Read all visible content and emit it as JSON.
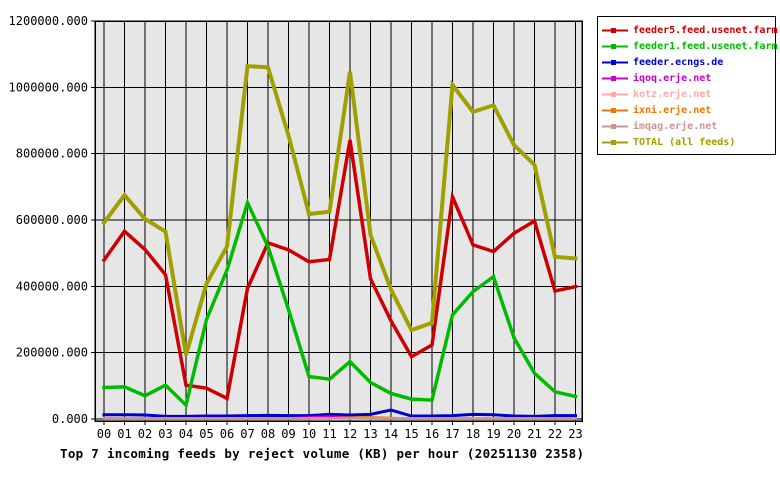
{
  "title": "Top 7 incoming feeds by reject volume (KB) per hour (20251130 2358)",
  "chart_data": {
    "type": "line",
    "title": "Top 7 incoming feeds by reject volume (KB) per hour (20251130 2358)",
    "xlabel": "",
    "ylabel": "",
    "x_tick_labels": [
      "00",
      "01",
      "02",
      "03",
      "04",
      "05",
      "06",
      "07",
      "08",
      "09",
      "10",
      "11",
      "12",
      "13",
      "14",
      "15",
      "16",
      "17",
      "18",
      "19",
      "20",
      "21",
      "22",
      "23"
    ],
    "ylim": [
      0,
      1200000
    ],
    "y_ticks": [
      {
        "label": "0.000",
        "value": 0
      },
      {
        "label": "200000.000",
        "value": 200000
      },
      {
        "label": "400000.000",
        "value": 400000
      },
      {
        "label": "600000.000",
        "value": 600000
      },
      {
        "label": "800000.000",
        "value": 800000
      },
      {
        "label": "1000000.000",
        "value": 1000000
      },
      {
        "label": "1200000.000",
        "value": 1200000
      }
    ],
    "grid": true,
    "legend_position": "top-right",
    "plot_background": "#e6e6e6",
    "grid_color": "#000000",
    "series": [
      {
        "name": "feeder5.feed.usenet.farm",
        "color": "#cc0000",
        "width": 3.5,
        "values": [
          479000,
          566000,
          511000,
          435000,
          102000,
          93000,
          62000,
          394000,
          531000,
          510000,
          474000,
          481000,
          841000,
          423000,
          296000,
          188000,
          223000,
          670000,
          525000,
          505000,
          560000,
          597000,
          386000,
          399000
        ]
      },
      {
        "name": "feeder1.feed.usenet.farm",
        "color": "#00bb00",
        "width": 3.5,
        "values": [
          95000,
          97000,
          70000,
          102000,
          42000,
          300000,
          449000,
          652000,
          520000,
          330000,
          128000,
          120000,
          173000,
          110000,
          77000,
          60000,
          57000,
          314000,
          384000,
          429000,
          245000,
          138000,
          82000,
          68000
        ]
      },
      {
        "name": "feeder.ecngs.de",
        "color": "#0000cc",
        "width": 3,
        "values": [
          13000,
          13000,
          12000,
          8000,
          8000,
          9000,
          9000,
          10000,
          11000,
          10000,
          10000,
          14000,
          12000,
          14000,
          27000,
          9000,
          9000,
          10000,
          14000,
          13000,
          9000,
          8000,
          10000,
          10000
        ]
      },
      {
        "name": "iqoq.erje.net",
        "color": "#cc00cc",
        "width": 2.5,
        "values": [
          1000,
          1000,
          1000,
          1000,
          1000,
          1000,
          1000,
          1000,
          1000,
          2000,
          5000,
          7000,
          4000,
          2000,
          1000,
          1000,
          1000,
          1000,
          1000,
          1000,
          1000,
          1000,
          1000,
          1000
        ]
      },
      {
        "name": "kotz.erje.net",
        "color": "#ffaaaa",
        "width": 2.5,
        "values": [
          1500,
          1500,
          1500,
          1500,
          1500,
          1500,
          1500,
          1500,
          1500,
          1500,
          1500,
          2000,
          3000,
          3000,
          2000,
          1500,
          1500,
          1500,
          1500,
          1500,
          1500,
          1500,
          1500,
          1500
        ]
      },
      {
        "name": "ixni.erje.net",
        "color": "#ee7700",
        "width": 2.5,
        "values": [
          500,
          500,
          500,
          500,
          500,
          500,
          500,
          500,
          500,
          500,
          1000,
          2000,
          4000,
          5000,
          3000,
          500,
          500,
          500,
          500,
          500,
          500,
          500,
          500,
          500
        ]
      },
      {
        "name": "imqag.erje.net",
        "color": "#cc9494",
        "width": 2.5,
        "values": [
          2000,
          2000,
          2000,
          2000,
          2000,
          2000,
          2000,
          2000,
          2000,
          2000,
          2000,
          2000,
          2000,
          2000,
          2000,
          2000,
          2000,
          2000,
          2000,
          2000,
          2000,
          2000,
          2000,
          2000
        ]
      },
      {
        "name": "TOTAL (all feeds)",
        "color": "#a0a000",
        "width": 4,
        "values": [
          592000,
          675000,
          603000,
          565000,
          193000,
          408000,
          520000,
          1064000,
          1060000,
          855000,
          618000,
          625000,
          1047000,
          555000,
          390000,
          268000,
          290000,
          1007000,
          926000,
          946000,
          826000,
          766000,
          489000,
          484000
        ]
      }
    ]
  }
}
